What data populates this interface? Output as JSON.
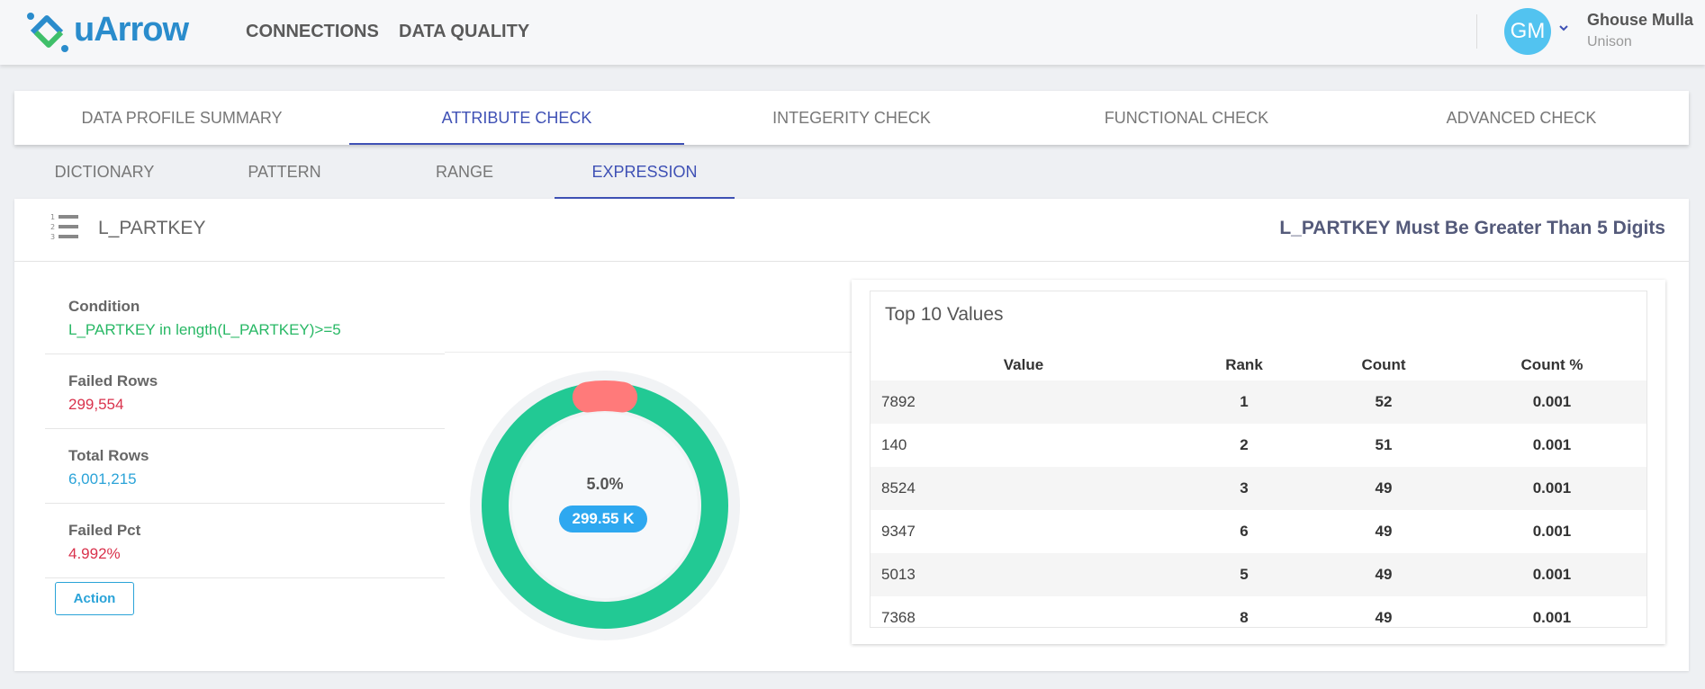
{
  "app": {
    "logo_text": "uArrow"
  },
  "nav": {
    "links": [
      "CONNECTIONS",
      "DATA QUALITY"
    ]
  },
  "user": {
    "initials": "GM",
    "name": "Ghouse Mulla",
    "org": "Unison"
  },
  "main_tabs": [
    "DATA PROFILE SUMMARY",
    "ATTRIBUTE CHECK",
    "INTEGERITY CHECK",
    "FUNCTIONAL CHECK",
    "ADVANCED CHECK"
  ],
  "main_tab_active": "ATTRIBUTE CHECK",
  "sub_tabs": [
    "DICTIONARY",
    "PATTERN",
    "RANGE",
    "EXPRESSION"
  ],
  "sub_tab_active": "EXPRESSION",
  "card": {
    "title": "L_PARTKEY",
    "rule": "L_PARTKEY Must Be Greater Than 5 Digits",
    "condition_label": "Condition",
    "condition_value": "L_PARTKEY in length(L_PARTKEY)>=5",
    "failed_rows_label": "Failed Rows",
    "failed_rows_value": "299,554",
    "total_rows_label": "Total Rows",
    "total_rows_value": "6,001,215",
    "failed_pct_label": "Failed Pct",
    "failed_pct_value": "4.992%",
    "action_label": "Action"
  },
  "donut": {
    "percent_label": "5.0%",
    "badge": "299.55 K",
    "failed_fraction": 0.05,
    "colors": {
      "pass": "#22c994",
      "fail": "#ff7a7a",
      "ring_bg": "#f1f3f5",
      "inner": "#f6f8fa"
    }
  },
  "top_values": {
    "title": "Top 10 Values",
    "columns": [
      "Value",
      "Rank",
      "Count",
      "Count %"
    ],
    "rows": [
      {
        "value": "7892",
        "rank": "1",
        "count": "52",
        "pct": "0.001"
      },
      {
        "value": "140",
        "rank": "2",
        "count": "51",
        "pct": "0.001"
      },
      {
        "value": "8524",
        "rank": "3",
        "count": "49",
        "pct": "0.001"
      },
      {
        "value": "9347",
        "rank": "6",
        "count": "49",
        "pct": "0.001"
      },
      {
        "value": "5013",
        "rank": "5",
        "count": "49",
        "pct": "0.001"
      },
      {
        "value": "7368",
        "rank": "8",
        "count": "49",
        "pct": "0.001"
      }
    ]
  }
}
